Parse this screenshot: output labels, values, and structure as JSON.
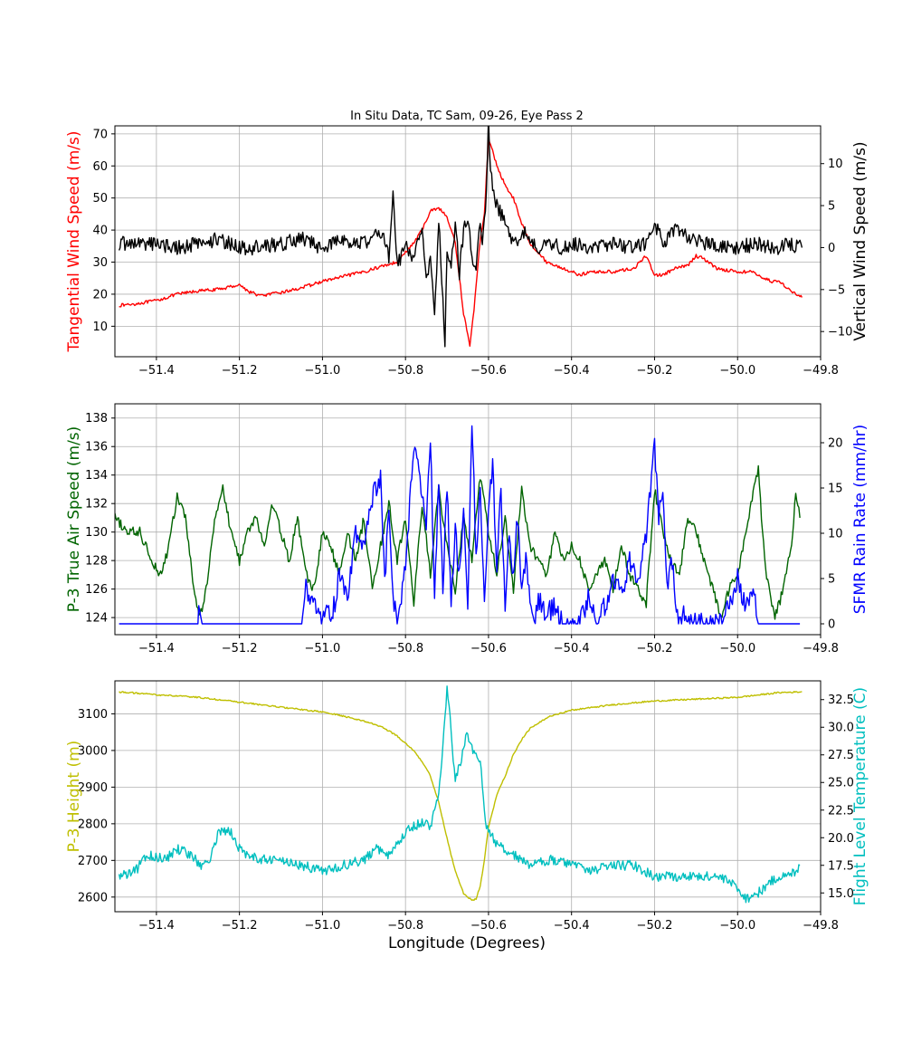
{
  "figure": {
    "title": "In Situ Data, TC Sam, 09-26, Eye Pass 2",
    "xlabel": "Longitude (Degrees)"
  },
  "chart_data": [
    {
      "type": "line",
      "title": "In Situ Data, TC Sam, 09-26, Eye Pass 2",
      "xlim": [
        -51.5,
        -49.8
      ],
      "xticks": [
        -51.4,
        -51.2,
        -51.0,
        -50.8,
        -50.6,
        -50.4,
        -50.2,
        -50.0,
        -49.8
      ],
      "xticklabels": [
        "−51.4",
        "−51.2",
        "−51.0",
        "−50.8",
        "−50.6",
        "−50.4",
        "−50.2",
        "−50.0",
        "−49.8"
      ],
      "grid": true,
      "left_axis": {
        "label": "Tangential Wind Speed (m/s)",
        "color": "#ff0000",
        "ylim": [
          0.5,
          72.5
        ],
        "ticks": [
          10,
          20,
          30,
          40,
          50,
          60,
          70
        ],
        "ticklabels": [
          "10",
          "20",
          "30",
          "40",
          "50",
          "60",
          "70"
        ]
      },
      "right_axis": {
        "label": "Vertical Wind Speed (m/s)",
        "color": "#000000",
        "ylim": [
          -13,
          14.5
        ],
        "ticks": [
          -10,
          -5,
          0,
          5,
          10
        ],
        "ticklabels": [
          "−10",
          "−5",
          "0",
          "5",
          "10"
        ]
      },
      "series": [
        {
          "axis": "left",
          "color": "#ff0000",
          "noise": 0.5,
          "x": [
            -51.49,
            -51.45,
            -51.4,
            -51.35,
            -51.3,
            -51.25,
            -51.2,
            -51.18,
            -51.15,
            -51.1,
            -51.05,
            -51.0,
            -50.95,
            -50.9,
            -50.85,
            -50.82,
            -50.8,
            -50.78,
            -50.76,
            -50.74,
            -50.72,
            -50.7,
            -50.68,
            -50.66,
            -50.645,
            -50.635,
            -50.62,
            -50.61,
            -50.6,
            -50.58,
            -50.56,
            -50.54,
            -50.52,
            -50.5,
            -50.48,
            -50.46,
            -50.44,
            -50.42,
            -50.4,
            -50.38,
            -50.35,
            -50.3,
            -50.25,
            -50.22,
            -50.2,
            -50.18,
            -50.15,
            -50.12,
            -50.1,
            -50.08,
            -50.05,
            -50.0,
            -49.97,
            -49.95,
            -49.92,
            -49.9,
            -49.88,
            -49.86,
            -49.845
          ],
          "y": [
            16.5,
            17,
            18,
            20,
            21,
            21.5,
            23,
            21,
            19.5,
            20.5,
            22,
            24,
            25.5,
            27,
            29,
            30,
            33,
            36,
            40,
            46,
            47,
            44,
            36,
            14,
            4,
            15,
            37,
            45,
            69,
            60,
            54,
            50,
            42,
            36,
            33,
            30,
            29,
            28,
            27,
            26,
            27,
            27,
            28,
            32,
            26,
            26,
            28,
            29,
            32,
            31,
            28,
            27,
            27,
            26,
            24,
            24,
            22,
            20,
            19
          ]
        },
        {
          "axis": "right",
          "color": "#000000",
          "noise": 0.9,
          "x": [
            -51.49,
            -51.4,
            -51.35,
            -51.3,
            -51.25,
            -51.2,
            -51.15,
            -51.1,
            -51.05,
            -51.0,
            -50.95,
            -50.9,
            -50.86,
            -50.84,
            -50.83,
            -50.82,
            -50.8,
            -50.78,
            -50.76,
            -50.75,
            -50.74,
            -50.73,
            -50.72,
            -50.715,
            -50.705,
            -50.7,
            -50.69,
            -50.68,
            -50.67,
            -50.66,
            -50.65,
            -50.64,
            -50.63,
            -50.62,
            -50.615,
            -50.605,
            -50.6,
            -50.595,
            -50.58,
            -50.56,
            -50.54,
            -50.52,
            -50.5,
            -50.48,
            -50.45,
            -50.42,
            -50.4,
            -50.35,
            -50.3,
            -50.25,
            -50.22,
            -50.2,
            -50.18,
            -50.15,
            -50.1,
            -50.05,
            -50.0,
            -49.95,
            -49.92,
            -49.9,
            -49.88,
            -49.86,
            -49.845
          ],
          "y": [
            0.5,
            0.5,
            0,
            0.5,
            1,
            0,
            0,
            0.5,
            1,
            0,
            1,
            0.5,
            2,
            -1,
            6,
            -2,
            0,
            -1,
            2,
            -4,
            -1,
            -8,
            3,
            -1,
            -12,
            0,
            -2,
            3,
            -3,
            2,
            4,
            -1,
            -3,
            3,
            0,
            6,
            15,
            9,
            5,
            3,
            0,
            2,
            1,
            0,
            0.5,
            0,
            0.5,
            0,
            0.5,
            0,
            0.5,
            3,
            0.5,
            2,
            1,
            0,
            0,
            0.5,
            0,
            0,
            0.5,
            0,
            0
          ]
        }
      ]
    },
    {
      "type": "line",
      "xlim": [
        -51.5,
        -49.8
      ],
      "xticks": [
        -51.4,
        -51.2,
        -51.0,
        -50.8,
        -50.6,
        -50.4,
        -50.2,
        -50.0,
        -49.8
      ],
      "xticklabels": [
        "−51.4",
        "−51.2",
        "−51.0",
        "−50.8",
        "−50.6",
        "−50.4",
        "−50.2",
        "−50.0",
        "−49.8"
      ],
      "grid": true,
      "left_axis": {
        "label": "P-3 True Air Speed (m/s)",
        "color": "#006400",
        "ylim": [
          122.8,
          139.0
        ],
        "ticks": [
          124,
          126,
          128,
          130,
          132,
          134,
          136,
          138
        ],
        "ticklabels": [
          "124",
          "126",
          "128",
          "130",
          "132",
          "134",
          "136",
          "138"
        ]
      },
      "right_axis": {
        "label": "SFMR Rain Rate (mm/hr)",
        "color": "#0000ff",
        "ylim": [
          -1.2,
          24.3
        ],
        "ticks": [
          0,
          5,
          10,
          15,
          20
        ],
        "ticklabels": [
          "0",
          "5",
          "10",
          "15",
          "20"
        ]
      },
      "series": [
        {
          "axis": "left",
          "color": "#006400",
          "noise": 0.35,
          "x": [
            -51.5,
            -51.47,
            -51.44,
            -51.41,
            -51.39,
            -51.37,
            -51.35,
            -51.33,
            -51.31,
            -51.295,
            -51.28,
            -51.26,
            -51.24,
            -51.22,
            -51.2,
            -51.18,
            -51.16,
            -51.14,
            -51.12,
            -51.1,
            -51.08,
            -51.06,
            -51.04,
            -51.02,
            -51.0,
            -50.98,
            -50.96,
            -50.94,
            -50.92,
            -50.9,
            -50.88,
            -50.86,
            -50.84,
            -50.82,
            -50.8,
            -50.78,
            -50.76,
            -50.74,
            -50.72,
            -50.7,
            -50.68,
            -50.66,
            -50.64,
            -50.62,
            -50.6,
            -50.58,
            -50.56,
            -50.54,
            -50.52,
            -50.5,
            -50.48,
            -50.46,
            -50.44,
            -50.42,
            -50.4,
            -50.38,
            -50.36,
            -50.34,
            -50.32,
            -50.3,
            -50.28,
            -50.26,
            -50.24,
            -50.22,
            -50.2,
            -50.18,
            -50.16,
            -50.14,
            -50.12,
            -50.1,
            -50.08,
            -50.06,
            -50.04,
            -50.02,
            -50.0,
            -49.98,
            -49.96,
            -49.95,
            -49.94,
            -49.93,
            -49.91,
            -49.89,
            -49.87,
            -49.86,
            -49.85
          ],
          "y": [
            131,
            130,
            130,
            128,
            127,
            129,
            132.5,
            131,
            126,
            124,
            126,
            131,
            133,
            130,
            128,
            130,
            131,
            129,
            132,
            130,
            128,
            131,
            127,
            126,
            130,
            129,
            127,
            130,
            128,
            131,
            126,
            129,
            132,
            128,
            131,
            125,
            132,
            127,
            133,
            129,
            126,
            131,
            128,
            134,
            130,
            127,
            131,
            126,
            133,
            129,
            128,
            127,
            130,
            128,
            129,
            128,
            126,
            127,
            128,
            126,
            129,
            127,
            126,
            125,
            133,
            130,
            128,
            127,
            131,
            130,
            128,
            126,
            124,
            126,
            127,
            130,
            133,
            134.5,
            130,
            127,
            124,
            126,
            129,
            133,
            131
          ]
        },
        {
          "axis": "right",
          "color": "#0000ff",
          "noise": 1.2,
          "clip_min": 0,
          "noise_from": -51.04,
          "noise_to": -49.95,
          "x": [
            -51.49,
            -51.3,
            -51.298,
            -51.29,
            -51.28,
            -51.05,
            -51.04,
            -51.02,
            -51.0,
            -50.99,
            -50.98,
            -50.96,
            -50.94,
            -50.92,
            -50.9,
            -50.88,
            -50.86,
            -50.85,
            -50.84,
            -50.83,
            -50.82,
            -50.8,
            -50.78,
            -50.77,
            -50.75,
            -50.74,
            -50.73,
            -50.72,
            -50.71,
            -50.7,
            -50.69,
            -50.68,
            -50.67,
            -50.66,
            -50.65,
            -50.64,
            -50.63,
            -50.62,
            -50.61,
            -50.6,
            -50.59,
            -50.58,
            -50.57,
            -50.56,
            -50.55,
            -50.54,
            -50.53,
            -50.52,
            -50.51,
            -50.5,
            -50.49,
            -50.48,
            -50.46,
            -50.44,
            -50.42,
            -50.4,
            -50.38,
            -50.36,
            -50.34,
            -50.32,
            -50.3,
            -50.28,
            -50.26,
            -50.24,
            -50.22,
            -50.2,
            -50.19,
            -50.18,
            -50.17,
            -50.16,
            -50.15,
            -50.14,
            -50.13,
            -50.12,
            -50.1,
            -50.08,
            -50.06,
            -50.04,
            -50.02,
            -50.0,
            -49.98,
            -49.96,
            -49.95,
            -49.93,
            -49.9,
            -49.85
          ],
          "y": [
            0,
            0,
            2,
            0,
            0,
            0,
            4,
            2,
            0,
            3,
            0,
            5,
            3,
            10,
            8,
            14,
            16,
            5,
            12,
            3,
            0,
            6,
            20,
            18,
            10,
            21,
            2,
            16,
            4,
            15,
            3,
            10,
            5,
            12,
            2,
            22,
            8,
            14,
            3,
            12,
            18,
            6,
            15,
            2,
            10,
            5,
            12,
            3,
            8,
            2,
            0,
            3,
            1,
            2,
            0,
            0,
            0,
            3,
            0,
            2,
            5,
            3,
            7,
            4,
            10,
            20,
            12,
            15,
            4,
            8,
            3,
            0,
            1,
            0,
            0,
            0,
            0,
            0,
            2,
            5,
            2,
            4,
            0,
            0,
            0,
            0
          ]
        }
      ]
    },
    {
      "type": "line",
      "xlim": [
        -51.5,
        -49.8
      ],
      "xticks": [
        -51.4,
        -51.2,
        -51.0,
        -50.8,
        -50.6,
        -50.4,
        -50.2,
        -50.0,
        -49.8
      ],
      "xticklabels": [
        "−51.4",
        "−51.2",
        "−51.0",
        "−50.8",
        "−50.6",
        "−50.4",
        "−50.2",
        "−50.0",
        "−49.8"
      ],
      "xlabel": "Longitude (Degrees)",
      "grid": true,
      "left_axis": {
        "label": "P-3 Height (m)",
        "color": "#bfbf00",
        "ylim": [
          2560,
          3190
        ],
        "ticks": [
          2600,
          2700,
          2800,
          2900,
          3000,
          3100
        ],
        "ticklabels": [
          "2600",
          "2700",
          "2800",
          "2900",
          "3000",
          "3100"
        ]
      },
      "right_axis": {
        "label": "Flight Level Temperature (C)",
        "color": "#00bfbf",
        "ylim": [
          13.3,
          34.2
        ],
        "ticks": [
          15.0,
          17.5,
          20.0,
          22.5,
          25.0,
          27.5,
          30.0,
          32.5
        ],
        "ticklabels": [
          "15.0",
          "17.5",
          "20.0",
          "22.5",
          "25.0",
          "27.5",
          "30.0",
          "32.5"
        ]
      },
      "series": [
        {
          "axis": "left",
          "color": "#bfbf00",
          "noise": 2,
          "x": [
            -51.49,
            -51.4,
            -51.3,
            -51.2,
            -51.1,
            -51.0,
            -50.95,
            -50.9,
            -50.86,
            -50.82,
            -50.8,
            -50.78,
            -50.76,
            -50.74,
            -50.72,
            -50.7,
            -50.68,
            -50.66,
            -50.64,
            -50.63,
            -50.62,
            -50.61,
            -50.6,
            -50.58,
            -50.56,
            -50.54,
            -50.52,
            -50.5,
            -50.45,
            -50.4,
            -50.3,
            -50.2,
            -50.1,
            -50.0,
            -49.9,
            -49.845
          ],
          "y": [
            3160,
            3152,
            3145,
            3132,
            3118,
            3105,
            3094,
            3080,
            3066,
            3040,
            3020,
            3000,
            2970,
            2930,
            2860,
            2760,
            2670,
            2610,
            2590,
            2595,
            2630,
            2700,
            2790,
            2880,
            2930,
            2990,
            3030,
            3060,
            3095,
            3110,
            3125,
            3135,
            3140,
            3145,
            3158,
            3160
          ]
        },
        {
          "axis": "right",
          "color": "#00bfbf",
          "noise": 0.45,
          "x": [
            -51.49,
            -51.45,
            -51.42,
            -51.38,
            -51.35,
            -51.32,
            -51.29,
            -51.27,
            -51.25,
            -51.22,
            -51.2,
            -51.18,
            -51.15,
            -51.1,
            -51.05,
            -51.0,
            -50.95,
            -50.9,
            -50.87,
            -50.84,
            -50.82,
            -50.8,
            -50.78,
            -50.76,
            -50.74,
            -50.72,
            -50.71,
            -50.7,
            -50.695,
            -50.69,
            -50.685,
            -50.68,
            -50.66,
            -50.655,
            -50.65,
            -50.64,
            -50.62,
            -50.61,
            -50.6,
            -50.58,
            -50.56,
            -50.54,
            -50.52,
            -50.5,
            -50.45,
            -50.4,
            -50.35,
            -50.3,
            -50.25,
            -50.2,
            -50.15,
            -50.1,
            -50.05,
            -50.02,
            -50.0,
            -49.98,
            -49.95,
            -49.92,
            -49.9,
            -49.88,
            -49.86,
            -49.85
          ],
          "y": [
            16.5,
            17,
            18.5,
            18,
            19,
            18.5,
            17.5,
            18,
            20.5,
            20.5,
            19,
            18.5,
            18,
            18,
            17.5,
            17,
            17.5,
            18,
            19,
            18.5,
            19.5,
            20.5,
            21,
            21.5,
            21,
            24,
            28,
            33.5,
            32,
            30,
            27,
            25,
            28,
            29.5,
            29,
            28,
            27,
            22,
            20.5,
            19.5,
            19,
            18.5,
            18,
            17.5,
            18,
            17.5,
            17,
            17.5,
            17.5,
            16.5,
            16.5,
            16.5,
            16.5,
            16,
            15.5,
            14.5,
            15,
            16,
            16.5,
            16.5,
            17,
            17.5
          ]
        }
      ]
    }
  ]
}
